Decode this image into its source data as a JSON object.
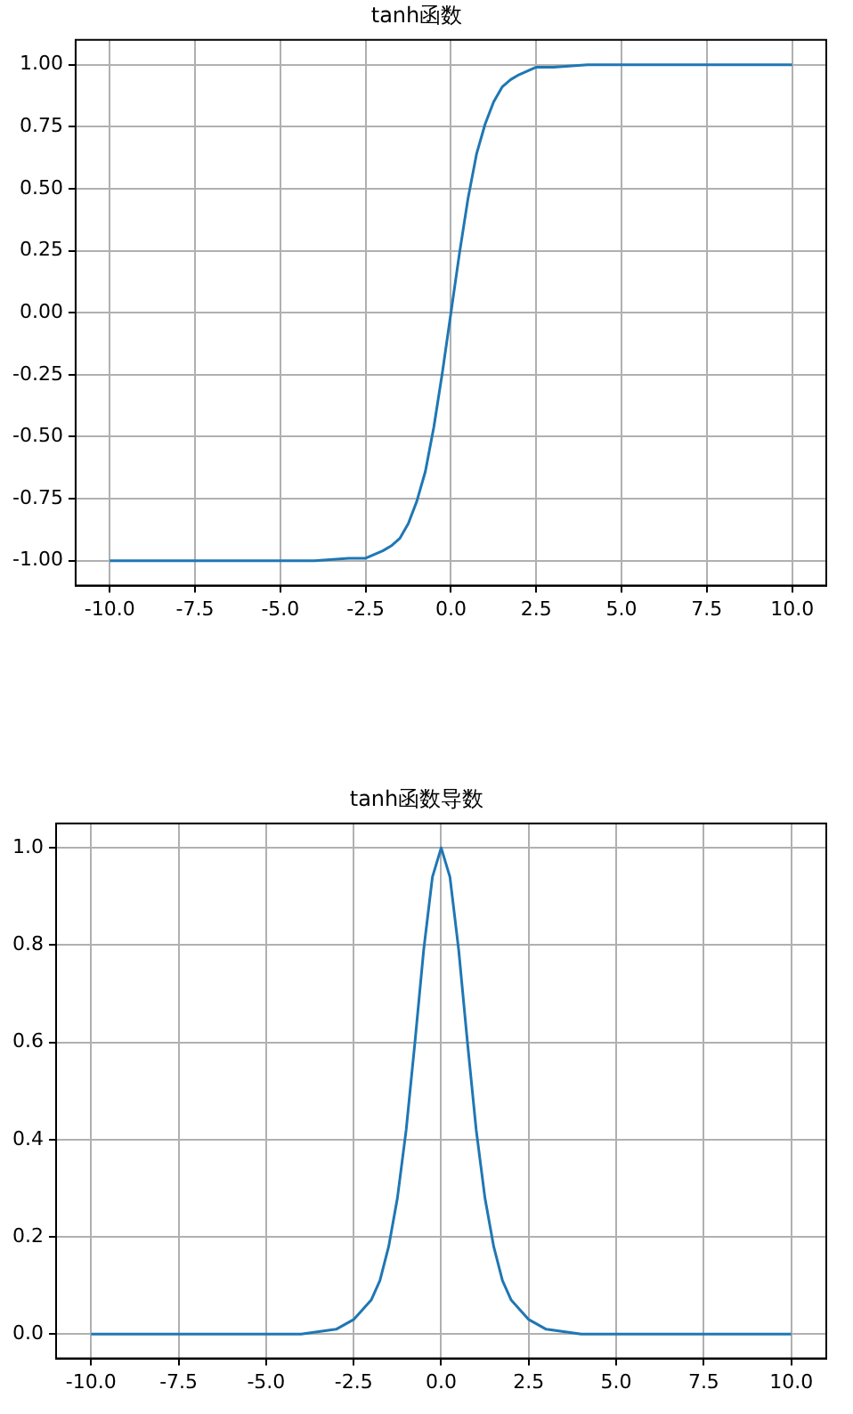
{
  "chart_data": [
    {
      "type": "line",
      "title": "tanh函数",
      "x": [
        -10,
        -5,
        -4,
        -3,
        -2.5,
        -2,
        -1.75,
        -1.5,
        -1.25,
        -1,
        -0.75,
        -0.5,
        -0.25,
        0,
        0.25,
        0.5,
        0.75,
        1,
        1.25,
        1.5,
        1.75,
        2,
        2.5,
        3,
        4,
        5,
        10
      ],
      "series": [
        {
          "color": "#1f77b4",
          "values": [
            -1,
            -1,
            -1,
            -0.99,
            -0.99,
            -0.96,
            -0.94,
            -0.91,
            -0.85,
            -0.76,
            -0.64,
            -0.46,
            -0.24,
            0,
            0.24,
            0.46,
            0.64,
            0.76,
            0.85,
            0.91,
            0.94,
            0.96,
            0.99,
            0.99,
            1,
            1,
            1
          ]
        }
      ],
      "xlim": [
        -11,
        11
      ],
      "xticks": [
        {
          "value": -10,
          "label": "-10.0"
        },
        {
          "value": -7.5,
          "label": "-7.5"
        },
        {
          "value": -5,
          "label": "-5.0"
        },
        {
          "value": -2.5,
          "label": "-2.5"
        },
        {
          "value": 0,
          "label": "0.0"
        },
        {
          "value": 2.5,
          "label": "2.5"
        },
        {
          "value": 5,
          "label": "5.0"
        },
        {
          "value": 7.5,
          "label": "7.5"
        },
        {
          "value": 10,
          "label": "10.0"
        }
      ],
      "ylim": [
        -1.1,
        1.1
      ],
      "yticks": [
        {
          "value": -1,
          "label": "-1.00"
        },
        {
          "value": -0.75,
          "label": "-0.75"
        },
        {
          "value": -0.5,
          "label": "-0.50"
        },
        {
          "value": -0.25,
          "label": "-0.25"
        },
        {
          "value": 0,
          "label": "0.00"
        },
        {
          "value": 0.25,
          "label": "0.25"
        },
        {
          "value": 0.5,
          "label": "0.50"
        },
        {
          "value": 0.75,
          "label": "0.75"
        },
        {
          "value": 1,
          "label": "1.00"
        }
      ],
      "grid": true
    },
    {
      "type": "line",
      "title": "tanh函数导数",
      "x": [
        -10,
        -5,
        -4,
        -3,
        -2.5,
        -2,
        -1.75,
        -1.5,
        -1.25,
        -1,
        -0.75,
        -0.5,
        -0.25,
        0,
        0.25,
        0.5,
        0.75,
        1,
        1.25,
        1.5,
        1.75,
        2,
        2.5,
        3,
        4,
        5,
        10
      ],
      "series": [
        {
          "color": "#1f77b4",
          "values": [
            0,
            0,
            0,
            0.01,
            0.03,
            0.07,
            0.11,
            0.18,
            0.28,
            0.42,
            0.6,
            0.79,
            0.94,
            1,
            0.94,
            0.79,
            0.6,
            0.42,
            0.28,
            0.18,
            0.11,
            0.07,
            0.03,
            0.01,
            0,
            0,
            0
          ]
        }
      ],
      "xlim": [
        -11,
        11
      ],
      "xticks": [
        {
          "value": -10,
          "label": "-10.0"
        },
        {
          "value": -7.5,
          "label": "-7.5"
        },
        {
          "value": -5,
          "label": "-5.0"
        },
        {
          "value": -2.5,
          "label": "-2.5"
        },
        {
          "value": 0,
          "label": "0.0"
        },
        {
          "value": 2.5,
          "label": "2.5"
        },
        {
          "value": 5,
          "label": "5.0"
        },
        {
          "value": 7.5,
          "label": "7.5"
        },
        {
          "value": 10,
          "label": "10.0"
        }
      ],
      "ylim": [
        -0.05,
        1.05
      ],
      "yticks": [
        {
          "value": 0,
          "label": "0.0"
        },
        {
          "value": 0.2,
          "label": "0.2"
        },
        {
          "value": 0.4,
          "label": "0.4"
        },
        {
          "value": 0.6,
          "label": "0.6"
        },
        {
          "value": 0.8,
          "label": "0.8"
        },
        {
          "value": 1,
          "label": "1.0"
        }
      ],
      "grid": true
    }
  ]
}
